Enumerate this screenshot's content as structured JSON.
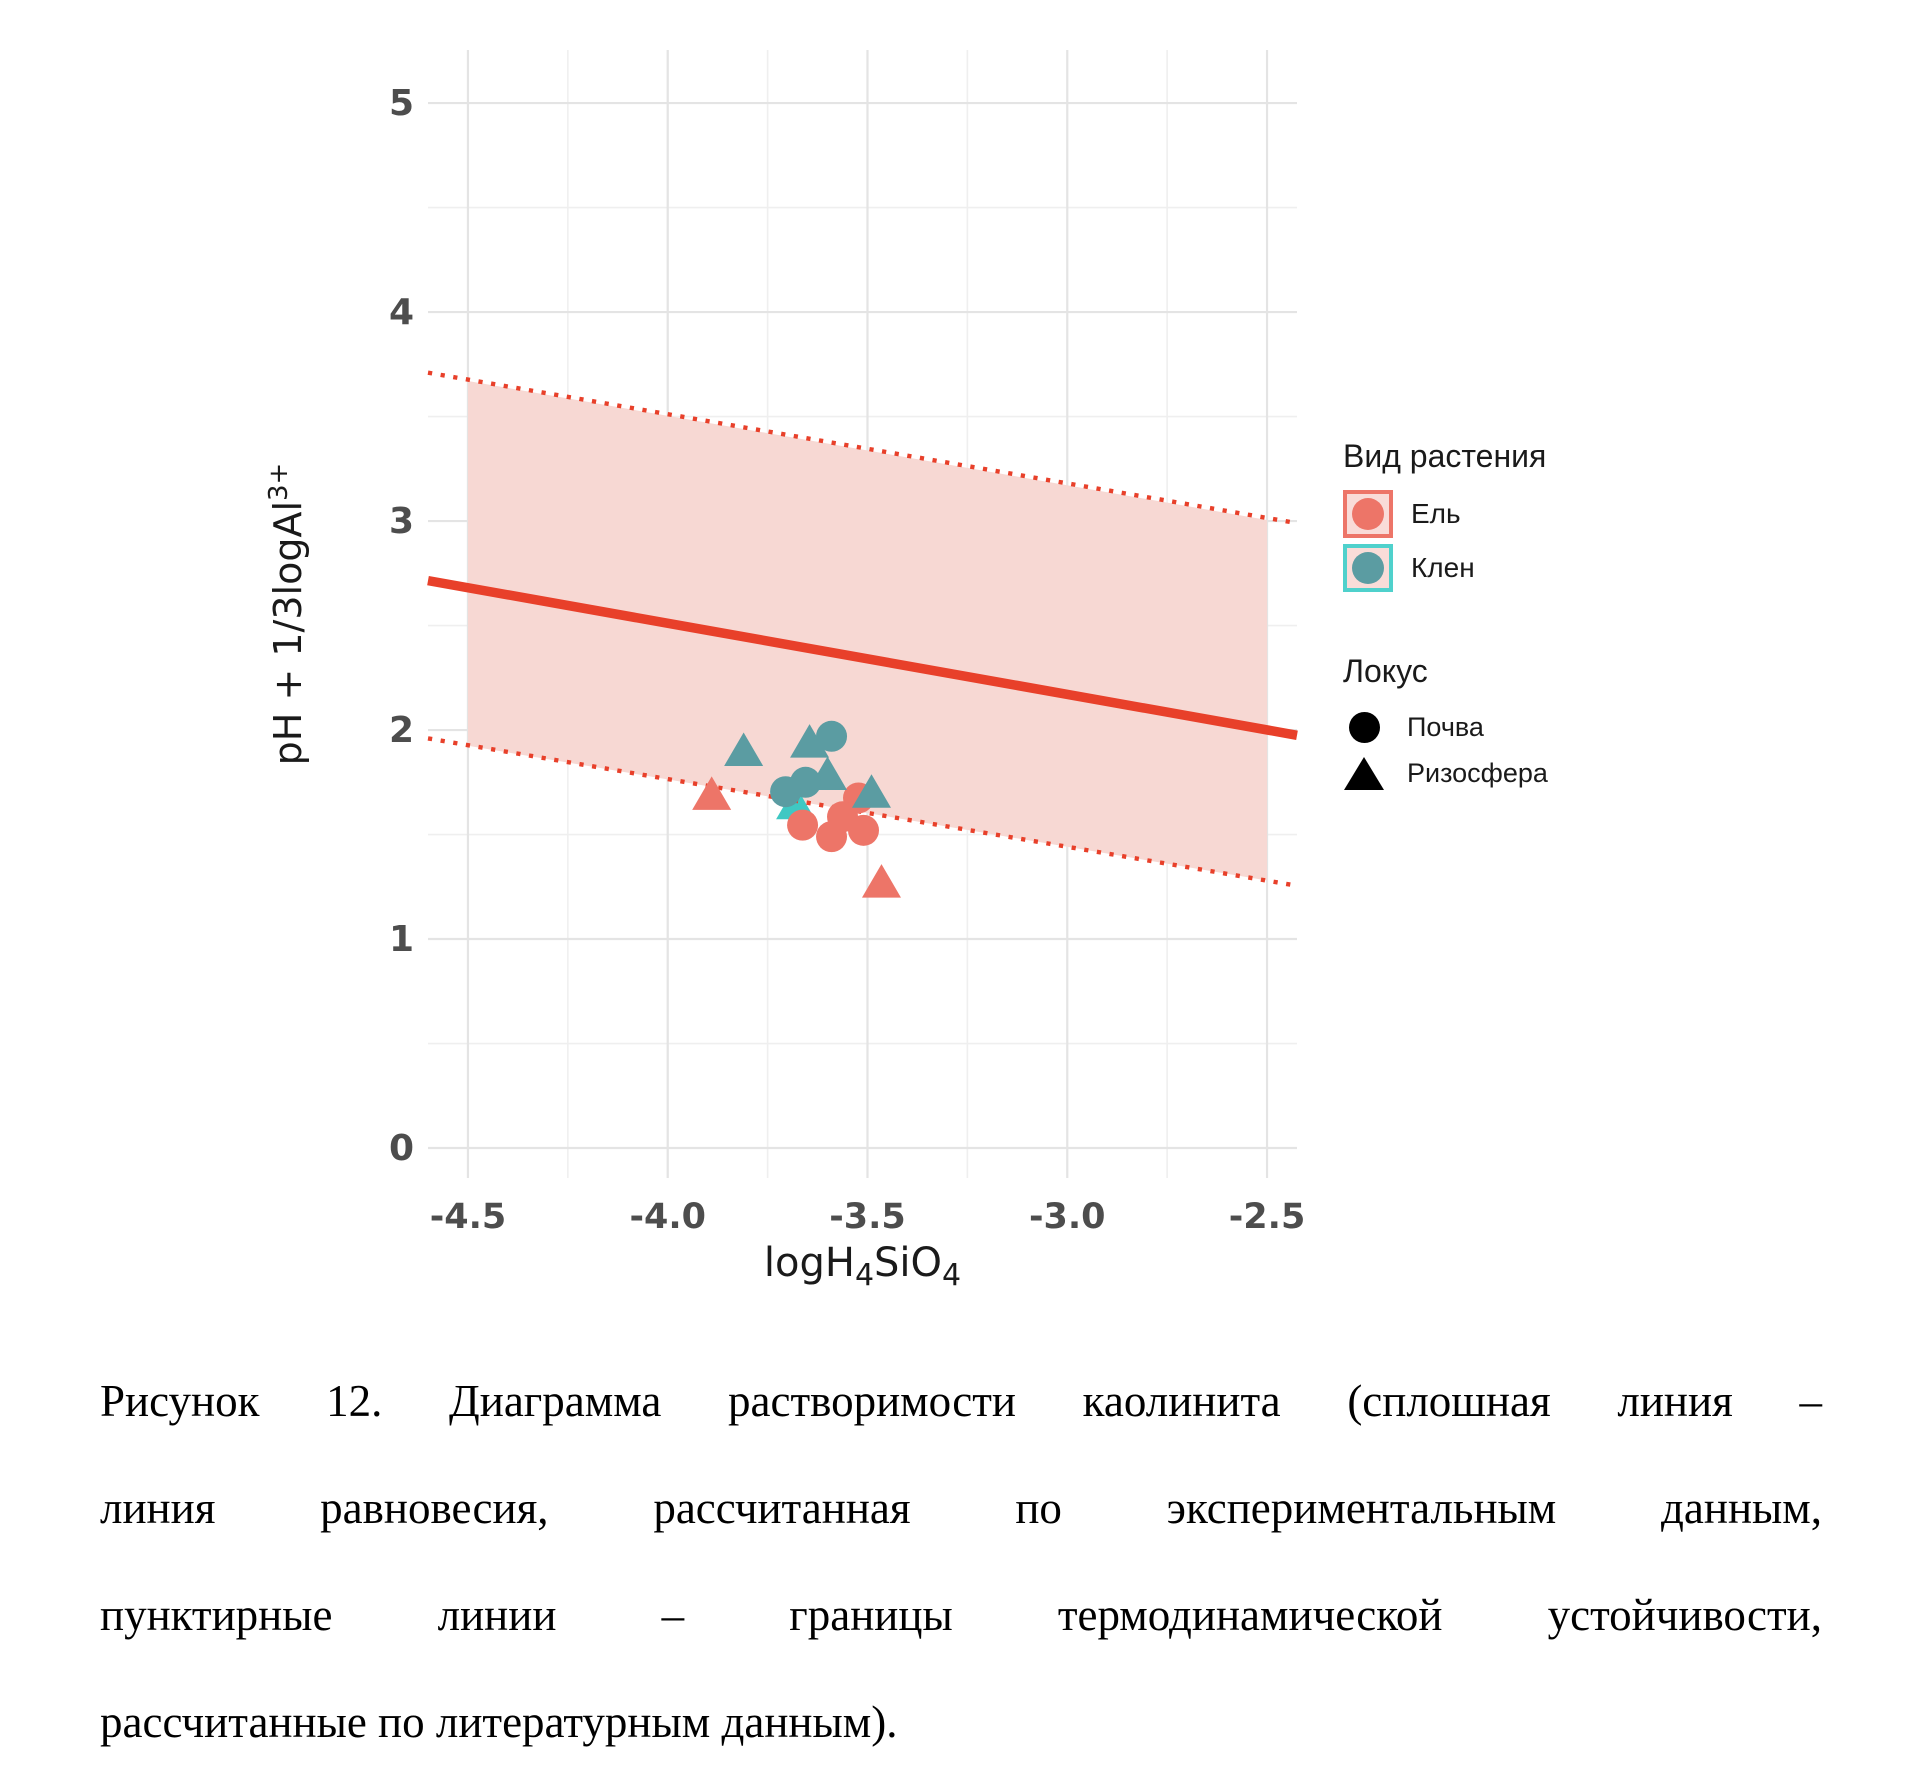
{
  "chart_data": {
    "type": "scatter",
    "title": "",
    "xlabel_parts": [
      {
        "t": "logH"
      },
      {
        "t": "4",
        "sub": true
      },
      {
        "t": "SiO"
      },
      {
        "t": "4",
        "sub": true
      }
    ],
    "ylabel_parts": [
      {
        "t": "pH + 1/3logAl"
      },
      {
        "t": "3+",
        "sup": true
      }
    ],
    "xlim": [
      -4.6,
      -2.425
    ],
    "ylim": [
      -0.1435,
      5.254
    ],
    "x_ticks": [
      -4.5,
      -4.0,
      -3.5,
      -3.0,
      -2.5
    ],
    "x_tick_labels": [
      "-4.5",
      "-4.0",
      "-3.5",
      "-3.0",
      "-2.5"
    ],
    "x_minor_ticks": [
      -4.25,
      -3.75,
      -3.25,
      -2.75
    ],
    "y_ticks": [
      0,
      1,
      2,
      3,
      4,
      5
    ],
    "y_tick_labels": [
      "0",
      "1",
      "2",
      "3",
      "4",
      "5"
    ],
    "y_minor_ticks": [
      0.5,
      1.5,
      2.5,
      3.5,
      4.5
    ],
    "grid": "on",
    "legend_position": "right",
    "equilibrium_line": {
      "x1": -4.6,
      "y1": 2.715,
      "x2": -2.425,
      "y2": 1.975,
      "color": "#e8402a",
      "width": 9.5
    },
    "upper_boundary_dotted": {
      "x1": -4.6,
      "y1": 3.71,
      "x2": -2.425,
      "y2": 2.99,
      "color": "#e8402a"
    },
    "lower_boundary_dotted": {
      "x1": -4.6,
      "y1": 1.96,
      "x2": -2.425,
      "y2": 1.255,
      "color": "#e8402a"
    },
    "stability_band": {
      "x1": -4.5,
      "top_y1": 3.67,
      "bottom_y1": 1.925,
      "x2": -2.5,
      "top_y2": 3.005,
      "bottom_y2": 1.28,
      "fill": "#f7d8d3"
    },
    "series": [
      {
        "species": "Ель",
        "locus": "Почва",
        "shape": "circle",
        "color": "#ed7568",
        "points": [
          [
            -3.6625,
            1.545
          ],
          [
            -3.59,
            1.49
          ],
          [
            -3.51,
            1.52
          ],
          [
            -3.5225,
            1.675
          ],
          [
            -3.5625,
            1.585
          ]
        ]
      },
      {
        "species": "Ель",
        "locus": "Ризосфера",
        "shape": "triangle",
        "color": "#ed7568",
        "points": [
          [
            -3.89,
            1.69
          ],
          [
            -3.465,
            1.27
          ]
        ]
      },
      {
        "species": "Клен",
        "locus": "Ризосфера",
        "shape": "triangle",
        "color": "#3fc8c3",
        "behind": true,
        "points": [
          [
            -3.68,
            1.645
          ]
        ]
      },
      {
        "species": "Клен",
        "locus": "Ризосфера",
        "shape": "triangle",
        "color": "#5b9ca2",
        "points": [
          [
            -3.81,
            1.9
          ],
          [
            -3.645,
            1.94
          ],
          [
            -3.6,
            1.785
          ],
          [
            -3.49,
            1.7
          ]
        ]
      },
      {
        "species": "Клен",
        "locus": "Почва",
        "shape": "circle",
        "color": "#5b9ca2",
        "points": [
          [
            -3.59,
            1.97
          ],
          [
            -3.655,
            1.75
          ],
          [
            -3.705,
            1.705
          ]
        ]
      }
    ],
    "style": {
      "grid_major": "#e4e4e4",
      "grid_minor": "#efefef",
      "tick_label_color": "#4d4d4d",
      "axis_title_color": "#1a1a1a",
      "point_radius": 15.5
    }
  },
  "legend": {
    "species_title": "Вид растения",
    "species": [
      {
        "label": "Ель",
        "fill": "#ed7568",
        "box_border": "#ed7568",
        "box_bg": "#f9dcd8"
      },
      {
        "label": "Клен",
        "fill": "#5b9ca2",
        "box_border": "#4fd1cc",
        "box_bg": "#f9dcd8"
      }
    ],
    "locus_title": "Локус",
    "locus": [
      {
        "label": "Почва",
        "shape": "circle"
      },
      {
        "label": "Ризосфера",
        "shape": "triangle"
      }
    ]
  },
  "caption": {
    "lines": [
      "Рисунок 12. Диаграмма растворимости каолинита (сплошная линия –",
      "линия равновесия, рассчитанная по экспериментальным данным,",
      "пунктирные линии – границы термодинамической устойчивости,",
      "рассчитанные по литературным данным)."
    ]
  }
}
